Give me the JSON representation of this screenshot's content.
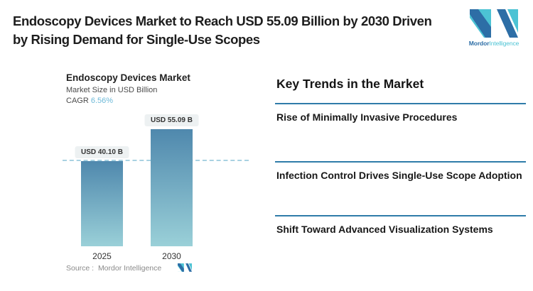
{
  "header": {
    "title_line1": "Endoscopy Devices Market to Reach USD 55.09 Billion by 2030 Driven",
    "title_line2": "by Rising Demand for Single-Use Scopes"
  },
  "brand": {
    "logo_icon": "mordor-intelligence-m-logo",
    "name_primary": "Mordor",
    "name_secondary": "Intelligence",
    "color_dark_blue": "#2d6ea6",
    "color_teal": "#4cc3d4"
  },
  "chart": {
    "title": "Endoscopy Devices Market",
    "subtitle": "Market Size in USD Billion",
    "cagr_label": "CAGR",
    "cagr_value": "6.56%",
    "cagr_value_color": "#6cb9d8",
    "source_text": "Source :  Mordor Intelligence"
  },
  "chart_data": {
    "type": "bar",
    "title": "Endoscopy Devices Market",
    "ylabel": "Market Size in USD Billion",
    "categories": [
      "2025",
      "2030"
    ],
    "values": [
      40.1,
      55.09
    ],
    "value_labels": [
      "USD 40.10 B",
      "USD 55.09 B"
    ],
    "cagr_percent": 6.56,
    "ylim": [
      0,
      60
    ],
    "grid": false,
    "legend": "none",
    "bar_color_top": "#4f88ad",
    "bar_color_bottom": "#9ad0d8",
    "reference_line": {
      "value": 40.1,
      "style": "dashed",
      "color": "#a9d2e2"
    }
  },
  "trends": {
    "heading": "Key Trends in the Market",
    "divider_color": "#2f7ca9",
    "items": [
      "Rise of Minimally Invasive Procedures",
      "Infection Control Drives Single-Use Scope Adoption",
      "Shift Toward Advanced Visualization Systems"
    ]
  }
}
